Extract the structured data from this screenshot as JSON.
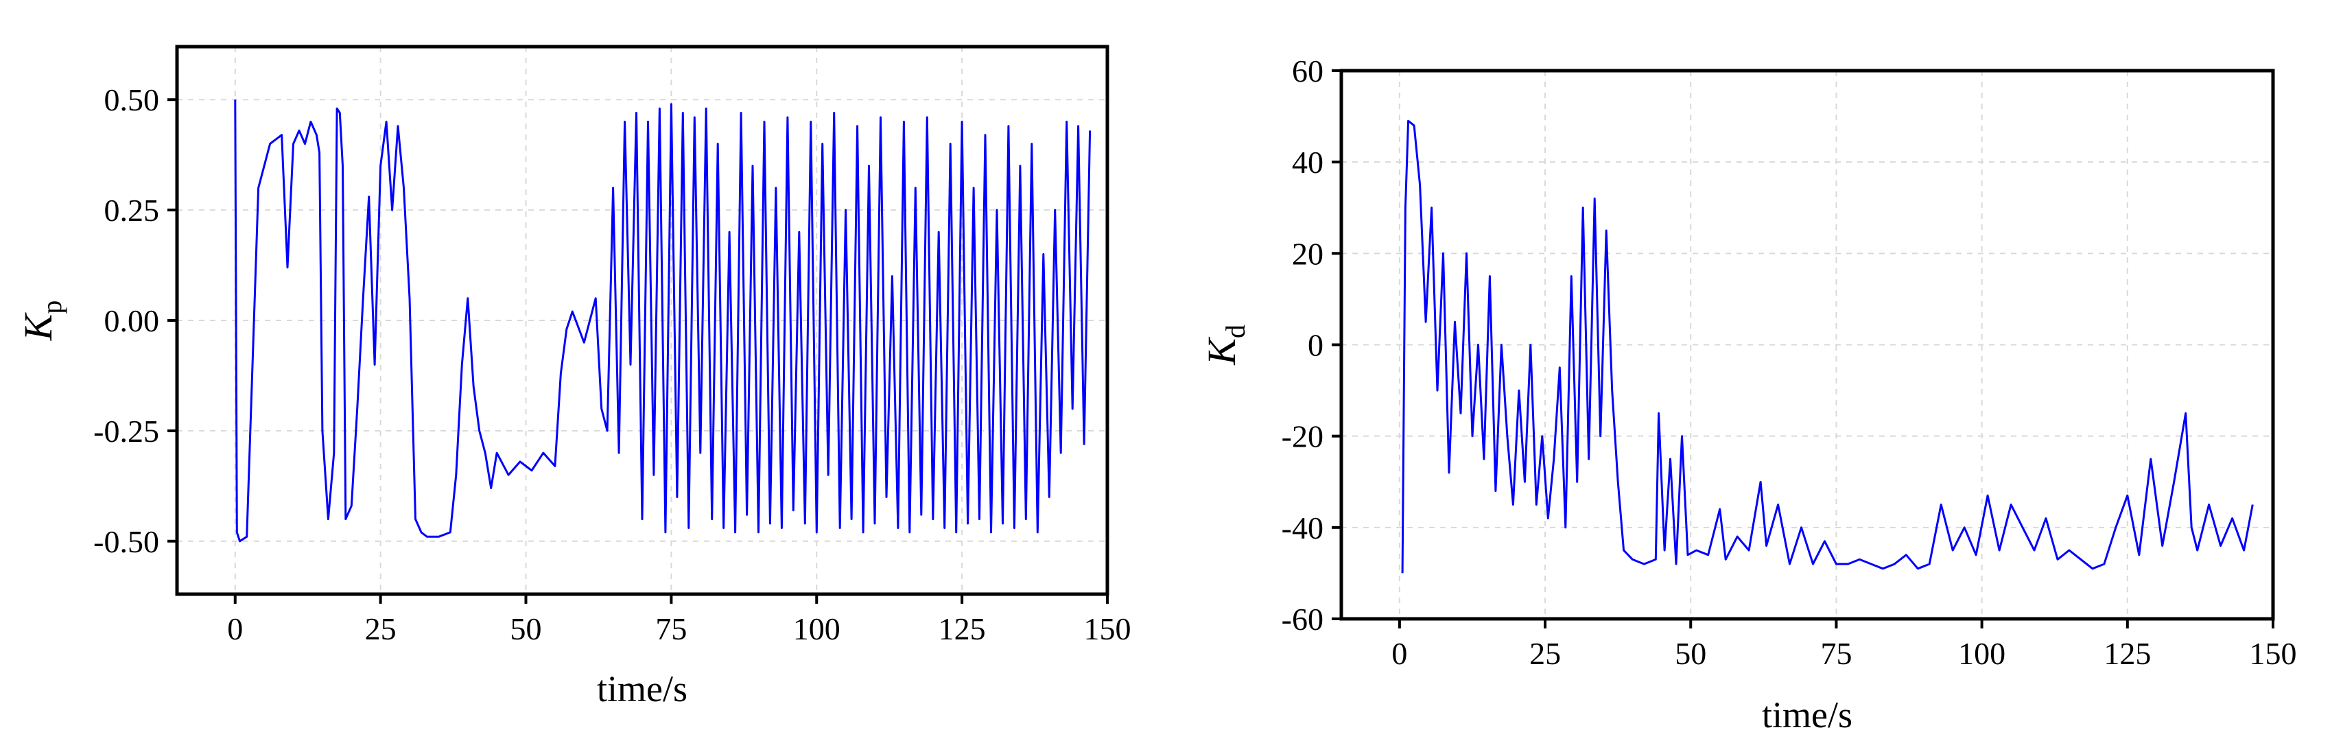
{
  "chart_data": [
    {
      "type": "line",
      "xlabel": "time/s",
      "ylabel_main": "K",
      "ylabel_sub": "p",
      "xlim": [
        -10,
        150
      ],
      "ylim": [
        -0.62,
        0.62
      ],
      "xticks": [
        0,
        25,
        50,
        75,
        100,
        125,
        150
      ],
      "xtick_labels": [
        "0",
        "25",
        "50",
        "75",
        "100",
        "125",
        "150"
      ],
      "yticks": [
        -0.5,
        -0.25,
        0,
        0.25,
        0.5
      ],
      "ytick_labels": [
        "-0.50",
        "-0.25",
        "0.00",
        "0.25",
        "0.50"
      ],
      "grid": true,
      "color": "#0000ff",
      "series": [
        {
          "x": [
            0,
            0.3,
            0.8,
            2,
            4,
            6,
            8,
            9,
            10,
            11,
            12,
            13,
            14,
            14.5,
            15,
            16,
            17,
            17.5,
            18,
            18.5,
            19,
            20,
            21,
            22,
            23,
            24,
            25,
            26,
            27,
            28,
            29,
            30,
            31,
            32,
            33,
            35,
            37,
            38,
            39,
            40,
            41,
            42,
            43,
            44,
            45,
            47,
            49,
            51,
            53,
            55,
            56,
            57,
            58,
            60,
            62,
            63,
            64,
            65,
            66,
            67,
            68,
            69,
            70,
            71,
            72,
            73,
            74,
            75,
            76,
            77,
            78,
            79,
            80,
            81,
            82,
            83,
            84,
            85,
            86,
            87,
            88,
            89,
            90,
            91,
            92,
            93,
            94,
            95,
            96,
            97,
            98,
            99,
            100,
            101,
            102,
            103,
            104,
            105,
            106,
            107,
            108,
            109,
            110,
            111,
            112,
            113,
            114,
            115,
            116,
            117,
            118,
            119,
            120,
            121,
            122,
            123,
            124,
            125,
            126,
            127,
            128,
            129,
            130,
            131,
            132,
            133,
            134,
            135,
            136,
            137,
            138,
            139,
            140,
            141,
            142,
            143,
            144,
            145,
            146,
            147
          ],
          "y": [
            0.5,
            -0.48,
            -0.5,
            -0.49,
            0.3,
            0.4,
            0.42,
            0.12,
            0.4,
            0.43,
            0.4,
            0.45,
            0.42,
            0.38,
            -0.25,
            -0.45,
            -0.3,
            0.48,
            0.47,
            0.35,
            -0.45,
            -0.42,
            -0.2,
            0.05,
            0.28,
            -0.1,
            0.35,
            0.45,
            0.25,
            0.44,
            0.3,
            0.05,
            -0.45,
            -0.48,
            -0.49,
            -0.49,
            -0.48,
            -0.35,
            -0.1,
            0.05,
            -0.15,
            -0.25,
            -0.3,
            -0.38,
            -0.3,
            -0.35,
            -0.32,
            -0.34,
            -0.3,
            -0.33,
            -0.12,
            -0.02,
            0.02,
            -0.05,
            0.05,
            -0.2,
            -0.25,
            0.3,
            -0.3,
            0.45,
            -0.1,
            0.47,
            -0.45,
            0.45,
            -0.35,
            0.48,
            -0.48,
            0.49,
            -0.4,
            0.47,
            -0.47,
            0.46,
            -0.3,
            0.48,
            -0.45,
            0.4,
            -0.47,
            0.2,
            -0.48,
            0.47,
            -0.44,
            0.35,
            -0.48,
            0.45,
            -0.46,
            0.3,
            -0.47,
            0.46,
            -0.43,
            0.2,
            -0.46,
            0.45,
            -0.48,
            0.4,
            -0.35,
            0.47,
            -0.47,
            0.25,
            -0.45,
            0.44,
            -0.48,
            0.35,
            -0.46,
            0.46,
            -0.4,
            0.1,
            -0.47,
            0.45,
            -0.48,
            0.3,
            -0.44,
            0.46,
            -0.45,
            0.2,
            -0.47,
            0.4,
            -0.48,
            0.45,
            -0.46,
            0.3,
            -0.45,
            0.42,
            -0.48,
            0.25,
            -0.46,
            0.44,
            -0.47,
            0.35,
            -0.45,
            0.4,
            -0.48,
            0.15,
            -0.4,
            0.25,
            -0.3,
            0.45,
            -0.2,
            0.44,
            -0.28,
            0.43
          ]
        }
      ]
    },
    {
      "type": "line",
      "xlabel": "time/s",
      "ylabel_main": "K",
      "ylabel_sub": "d",
      "xlim": [
        -10,
        150
      ],
      "ylim": [
        -60,
        60
      ],
      "xticks": [
        0,
        25,
        50,
        75,
        100,
        125,
        150
      ],
      "xtick_labels": [
        "0",
        "25",
        "50",
        "75",
        "100",
        "125",
        "150"
      ],
      "yticks": [
        -60,
        -40,
        -20,
        0,
        20,
        40,
        60
      ],
      "ytick_labels": [
        "-60",
        "-40",
        "-20",
        "0",
        "20",
        "40",
        "60"
      ],
      "grid": true,
      "color": "#0000ff",
      "series": [
        {
          "x": [
            0.5,
            1,
            1.5,
            2.5,
            3.5,
            4.5,
            5.5,
            6.5,
            7.5,
            8.5,
            9.5,
            10.5,
            11.5,
            12.5,
            13.5,
            14.5,
            15.5,
            16.5,
            17.5,
            18.5,
            19.5,
            20.5,
            21.5,
            22.5,
            23.5,
            24.5,
            25.5,
            26.5,
            27.5,
            28.5,
            29.5,
            30.5,
            31.5,
            32.5,
            33.5,
            34.5,
            35.5,
            36.5,
            37.5,
            38.5,
            40,
            42,
            44,
            44.5,
            45.5,
            46.5,
            47.5,
            48.5,
            49.5,
            51,
            53,
            55,
            56,
            58,
            60,
            62,
            63,
            65,
            67,
            69,
            71,
            73,
            75,
            77,
            79,
            81,
            83,
            85,
            87,
            89,
            91,
            93,
            95,
            97,
            99,
            101,
            103,
            105,
            107,
            109,
            111,
            113,
            115,
            117,
            119,
            121,
            123,
            125,
            127,
            129,
            131,
            133,
            135,
            136,
            137,
            139,
            141,
            143,
            145,
            146.5
          ],
          "y": [
            -50,
            30,
            49,
            48,
            35,
            5,
            30,
            -10,
            20,
            -28,
            5,
            -15,
            20,
            -20,
            0,
            -25,
            15,
            -32,
            0,
            -20,
            -35,
            -10,
            -30,
            0,
            -35,
            -20,
            -38,
            -25,
            -5,
            -40,
            15,
            -30,
            30,
            -25,
            32,
            -20,
            25,
            -10,
            -30,
            -45,
            -47,
            -48,
            -47,
            -15,
            -45,
            -25,
            -48,
            -20,
            -46,
            -45,
            -46,
            -36,
            -47,
            -42,
            -45,
            -30,
            -44,
            -35,
            -48,
            -40,
            -48,
            -43,
            -48,
            -48,
            -47,
            -48,
            -49,
            -48,
            -46,
            -49,
            -48,
            -35,
            -45,
            -40,
            -46,
            -33,
            -45,
            -35,
            -40,
            -45,
            -38,
            -47,
            -45,
            -47,
            -49,
            -48,
            -40,
            -33,
            -46,
            -25,
            -44,
            -30,
            -15,
            -40,
            -45,
            -35,
            -44,
            -38,
            -45,
            -35
          ]
        }
      ]
    }
  ]
}
